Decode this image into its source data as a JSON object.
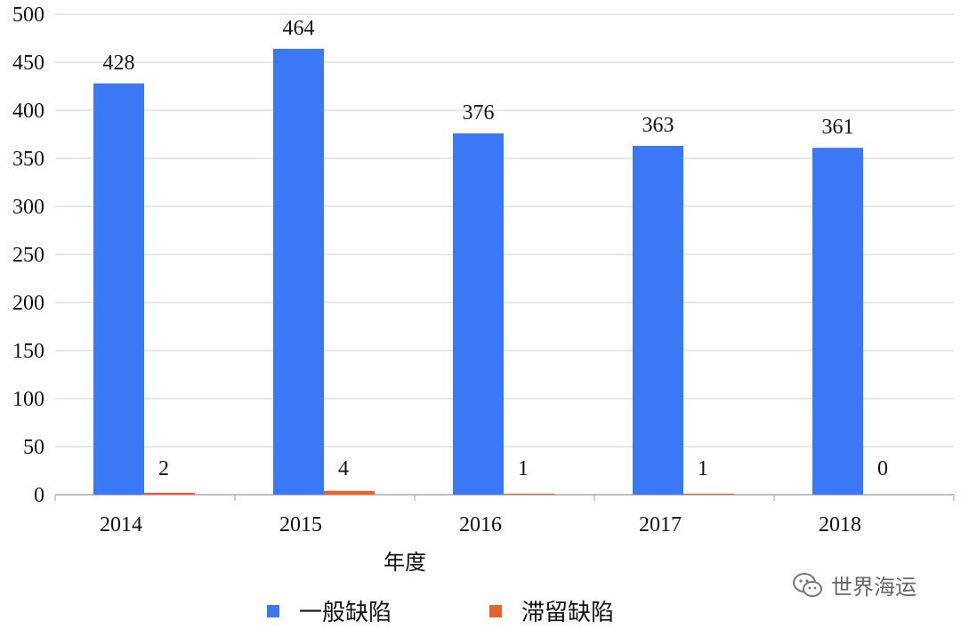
{
  "chart_data": {
    "type": "bar",
    "categories": [
      "2014",
      "2015",
      "2016",
      "2017",
      "2018"
    ],
    "series": [
      {
        "name": "一般缺陷",
        "values": [
          428,
          464,
          376,
          363,
          361
        ],
        "color": "#3b78f6"
      },
      {
        "name": "滞留缺陷",
        "values": [
          2,
          4,
          1,
          1,
          0
        ],
        "color": "#e8622c"
      }
    ],
    "title": "",
    "xlabel": "年度",
    "ylabel": "",
    "ylim": [
      0,
      500
    ],
    "yticks": [
      0,
      50,
      100,
      150,
      200,
      250,
      300,
      350,
      400,
      450,
      500
    ],
    "grid": true,
    "legend_position": "bottom"
  },
  "watermark": {
    "text": "世界海运",
    "icon": "wechat-icon"
  }
}
